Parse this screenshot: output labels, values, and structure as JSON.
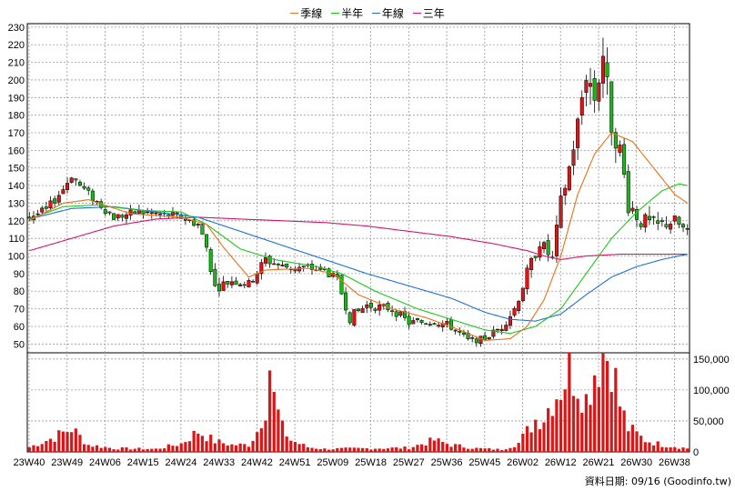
{
  "legend": [
    {
      "label": "季線",
      "color": "#e8711a"
    },
    {
      "label": "半年",
      "color": "#1fc61f"
    },
    {
      "label": "年線",
      "color": "#1e6fd6"
    },
    {
      "label": "三年",
      "color": "#d4146e"
    }
  ],
  "footer": "資料日期: 09/16  (Goodinfo.tw)",
  "colors": {
    "up": "#d81818",
    "down": "#18b818",
    "volume": "#d81818",
    "grid": "#9a9a9a"
  },
  "chart_data": {
    "type": "candlestick",
    "price_axis": {
      "ylim": [
        45,
        232
      ],
      "ticks": [
        50,
        60,
        70,
        80,
        90,
        100,
        110,
        120,
        130,
        140,
        150,
        160,
        170,
        180,
        190,
        200,
        210,
        220,
        230
      ]
    },
    "volume_axis": {
      "ylim": [
        0,
        160000
      ],
      "ticks": [
        0,
        50000,
        100000,
        150000
      ],
      "tick_labels": [
        "0",
        "50,000",
        "100,000",
        "150,000"
      ]
    },
    "x_axis": {
      "tick_labels": [
        "23W40",
        "23W49",
        "24W06",
        "24W15",
        "24W24",
        "24W33",
        "24W42",
        "24W51",
        "25W09",
        "25W18",
        "25W27",
        "25W36",
        "25W45",
        "26W02",
        "26W12",
        "26W21",
        "26W30",
        "26W38"
      ],
      "weeks_per_label": 9
    },
    "weeks": 157,
    "candles_keyframes": [
      {
        "w": 0,
        "c": 122,
        "n": 4
      },
      {
        "w": 4,
        "c": 126,
        "n": 4
      },
      {
        "w": 8,
        "c": 138,
        "n": 4
      },
      {
        "w": 10,
        "c": 146,
        "n": 4
      },
      {
        "w": 12,
        "c": 140,
        "n": 4
      },
      {
        "w": 15,
        "c": 133,
        "n": 4
      },
      {
        "w": 20,
        "c": 122,
        "n": 4
      },
      {
        "w": 26,
        "c": 125,
        "n": 4
      },
      {
        "w": 30,
        "c": 124,
        "n": 4
      },
      {
        "w": 36,
        "c": 122,
        "n": 4
      },
      {
        "w": 40,
        "c": 118,
        "n": 4
      },
      {
        "w": 42,
        "c": 105,
        "n": 5
      },
      {
        "w": 44,
        "c": 82,
        "n": 5
      },
      {
        "w": 48,
        "c": 86,
        "n": 4
      },
      {
        "w": 52,
        "c": 84,
        "n": 4
      },
      {
        "w": 56,
        "c": 98,
        "n": 5
      },
      {
        "w": 60,
        "c": 94,
        "n": 4
      },
      {
        "w": 66,
        "c": 93,
        "n": 4
      },
      {
        "w": 70,
        "c": 92,
        "n": 4
      },
      {
        "w": 73,
        "c": 86,
        "n": 4
      },
      {
        "w": 76,
        "c": 65,
        "n": 5
      },
      {
        "w": 80,
        "c": 72,
        "n": 4
      },
      {
        "w": 86,
        "c": 70,
        "n": 4
      },
      {
        "w": 90,
        "c": 62,
        "n": 4
      },
      {
        "w": 96,
        "c": 63,
        "n": 4
      },
      {
        "w": 100,
        "c": 60,
        "n": 4
      },
      {
        "w": 104,
        "c": 52,
        "n": 3
      },
      {
        "w": 108,
        "c": 53,
        "n": 3
      },
      {
        "w": 112,
        "c": 60,
        "n": 4
      },
      {
        "w": 115,
        "c": 70,
        "n": 5
      },
      {
        "w": 118,
        "c": 90,
        "n": 6
      },
      {
        "w": 121,
        "c": 108,
        "n": 6
      },
      {
        "w": 124,
        "c": 98,
        "n": 6
      },
      {
        "w": 126,
        "c": 130,
        "n": 8
      },
      {
        "w": 128,
        "c": 150,
        "n": 8
      },
      {
        "w": 130,
        "c": 175,
        "n": 10
      },
      {
        "w": 132,
        "c": 205,
        "n": 14
      },
      {
        "w": 134,
        "c": 190,
        "n": 14
      },
      {
        "w": 136,
        "c": 215,
        "n": 14
      },
      {
        "w": 138,
        "c": 175,
        "n": 12
      },
      {
        "w": 140,
        "c": 160,
        "n": 10
      },
      {
        "w": 142,
        "c": 130,
        "n": 10
      },
      {
        "w": 145,
        "c": 120,
        "n": 8
      },
      {
        "w": 149,
        "c": 117,
        "n": 7
      },
      {
        "w": 153,
        "c": 120,
        "n": 6
      },
      {
        "w": 156,
        "c": 113,
        "n": 5
      }
    ],
    "ma_quarter": [
      [
        0,
        120
      ],
      [
        8,
        130
      ],
      [
        14,
        132
      ],
      [
        24,
        124
      ],
      [
        36,
        122
      ],
      [
        42,
        118
      ],
      [
        46,
        105
      ],
      [
        52,
        88
      ],
      [
        56,
        92
      ],
      [
        66,
        93
      ],
      [
        72,
        90
      ],
      [
        78,
        78
      ],
      [
        86,
        70
      ],
      [
        94,
        65
      ],
      [
        102,
        58
      ],
      [
        108,
        52
      ],
      [
        114,
        53
      ],
      [
        118,
        60
      ],
      [
        122,
        75
      ],
      [
        126,
        100
      ],
      [
        130,
        135
      ],
      [
        134,
        158
      ],
      [
        138,
        170
      ],
      [
        143,
        165
      ],
      [
        148,
        150
      ],
      [
        153,
        135
      ],
      [
        156,
        130
      ]
    ],
    "ma_half": [
      [
        0,
        121
      ],
      [
        8,
        128
      ],
      [
        16,
        129
      ],
      [
        26,
        126
      ],
      [
        36,
        125
      ],
      [
        42,
        118
      ],
      [
        50,
        104
      ],
      [
        58,
        98
      ],
      [
        68,
        94
      ],
      [
        74,
        90
      ],
      [
        82,
        80
      ],
      [
        92,
        70
      ],
      [
        100,
        64
      ],
      [
        108,
        58
      ],
      [
        114,
        56
      ],
      [
        120,
        60
      ],
      [
        126,
        70
      ],
      [
        132,
        90
      ],
      [
        138,
        110
      ],
      [
        144,
        125
      ],
      [
        150,
        137
      ],
      [
        154,
        141
      ],
      [
        156,
        140
      ]
    ],
    "ma_year": [
      [
        0,
        121
      ],
      [
        10,
        127
      ],
      [
        20,
        128
      ],
      [
        30,
        125
      ],
      [
        40,
        122
      ],
      [
        50,
        114
      ],
      [
        60,
        106
      ],
      [
        70,
        98
      ],
      [
        80,
        90
      ],
      [
        90,
        83
      ],
      [
        100,
        76
      ],
      [
        108,
        68
      ],
      [
        114,
        64
      ],
      [
        120,
        63
      ],
      [
        126,
        67
      ],
      [
        132,
        78
      ],
      [
        138,
        88
      ],
      [
        144,
        94
      ],
      [
        150,
        98
      ],
      [
        156,
        101
      ]
    ],
    "ma_3year": [
      [
        0,
        103
      ],
      [
        10,
        110
      ],
      [
        20,
        117
      ],
      [
        30,
        121
      ],
      [
        40,
        122
      ],
      [
        50,
        121
      ],
      [
        60,
        120
      ],
      [
        70,
        119
      ],
      [
        80,
        117
      ],
      [
        90,
        114
      ],
      [
        100,
        111
      ],
      [
        110,
        107
      ],
      [
        118,
        103
      ],
      [
        122,
        100
      ],
      [
        126,
        98
      ],
      [
        132,
        100
      ],
      [
        140,
        101
      ],
      [
        150,
        101
      ],
      [
        156,
        101
      ]
    ],
    "volume_keyframes": [
      [
        0,
        8000
      ],
      [
        6,
        25000
      ],
      [
        10,
        40000
      ],
      [
        14,
        12000
      ],
      [
        20,
        6000
      ],
      [
        30,
        5000
      ],
      [
        36,
        14000
      ],
      [
        40,
        35000
      ],
      [
        44,
        18000
      ],
      [
        48,
        12000
      ],
      [
        52,
        12000
      ],
      [
        54,
        35000
      ],
      [
        56,
        80000
      ],
      [
        57,
        148000
      ],
      [
        58,
        90000
      ],
      [
        60,
        40000
      ],
      [
        62,
        20000
      ],
      [
        66,
        8000
      ],
      [
        70,
        5000
      ],
      [
        80,
        6000
      ],
      [
        90,
        7000
      ],
      [
        96,
        20000
      ],
      [
        100,
        12000
      ],
      [
        106,
        6000
      ],
      [
        112,
        4000
      ],
      [
        116,
        15000
      ],
      [
        118,
        35000
      ],
      [
        120,
        55000
      ],
      [
        122,
        60000
      ],
      [
        124,
        90000
      ],
      [
        126,
        110000
      ],
      [
        128,
        140000
      ],
      [
        130,
        120000
      ],
      [
        132,
        90000
      ],
      [
        134,
        140000
      ],
      [
        136,
        170000
      ],
      [
        138,
        160000
      ],
      [
        140,
        80000
      ],
      [
        142,
        40000
      ],
      [
        146,
        20000
      ],
      [
        150,
        12000
      ],
      [
        156,
        6000
      ]
    ]
  }
}
